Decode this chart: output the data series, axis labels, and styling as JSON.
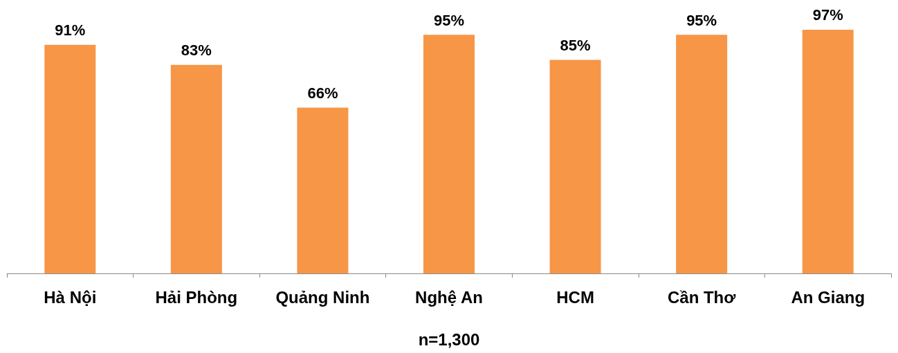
{
  "chart_data": {
    "type": "bar",
    "categories": [
      "Hà Nội",
      "Hải Phòng",
      "Quảng Ninh",
      "Nghệ An",
      "HCM",
      "Cần Thơ",
      "An Giang"
    ],
    "values": [
      91,
      83,
      66,
      95,
      85,
      95,
      97
    ],
    "value_labels": [
      "91%",
      "83%",
      "66%",
      "95%",
      "85%",
      "95%",
      "97%"
    ],
    "color": "#f79646",
    "xlabel": "n=1,300",
    "tick_labels": "x"
  }
}
